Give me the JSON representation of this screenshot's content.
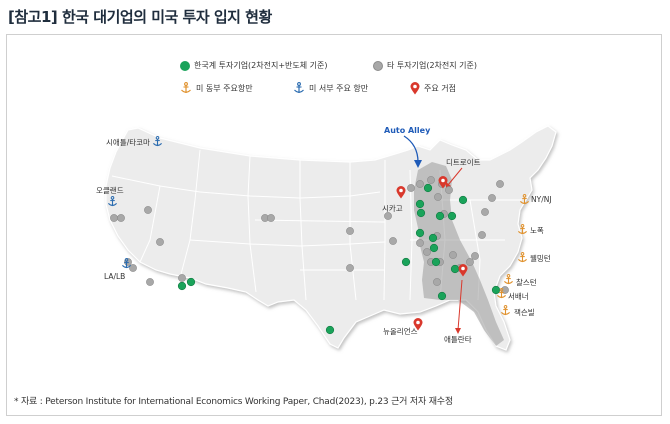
{
  "title": "[참고1] 한국 대기업의 미국 투자 입지 현황",
  "legend": {
    "korean": "한국계 투자기업(2차전지+반도체 기준)",
    "other": "타 투자기업(2차전지 기준)",
    "east_port": "미 동부 주요항만",
    "west_port": "미 서부 주요 항만",
    "hub": "주요 거점"
  },
  "annotation": {
    "auto_alley": "Auto Alley"
  },
  "labels": {
    "seattle": "시애틀/타코마",
    "oakland": "오클랜드",
    "la": "LA/LB",
    "chicago": "시카고",
    "detroit": "디트로이트",
    "nynj": "NY/NJ",
    "norfolk": "노폭",
    "wilmington": "웰밍턴",
    "charleston": "찰스턴",
    "savannah": "서배너",
    "jacksonville": "잭슨빌",
    "new_orleans": "뉴올리언스",
    "atlanta": "애틀란타"
  },
  "colors": {
    "korean_dot": "#1aa35a",
    "other_dot": "#a8a8a8",
    "east_anchor": "#e0922e",
    "west_anchor": "#2b6cb0",
    "hub_pin": "#d9382c",
    "auto_alley": "#9a9a9a"
  },
  "source": "* 자료 : Peterson Institute for International Economics Working Paper, Chad(2023), p.23 근거 저자 재수정"
}
